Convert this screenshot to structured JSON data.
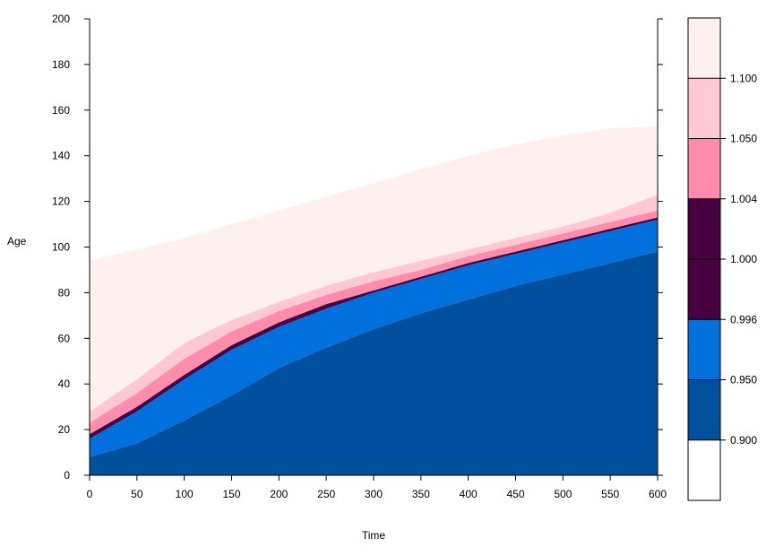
{
  "chart_data": {
    "type": "heatmap",
    "title": "",
    "xlabel": "Time",
    "ylabel": "Age",
    "xlim": [
      0,
      600
    ],
    "ylim": [
      0,
      200
    ],
    "xticks": [
      0,
      50,
      100,
      150,
      200,
      250,
      300,
      350,
      400,
      450,
      500,
      550,
      600
    ],
    "yticks": [
      0,
      20,
      40,
      60,
      80,
      100,
      120,
      140,
      160,
      180,
      200
    ],
    "grid": false,
    "legend_position": "right",
    "colorbar": {
      "tick_labels": [
        "0.900",
        "0.950",
        "0.996",
        "1.000",
        "1.004",
        "1.050",
        "1.100"
      ],
      "bins": [
        {
          "color": "#FFFFFF"
        },
        {
          "color": "#00509E"
        },
        {
          "color": "#0070DC"
        },
        {
          "color": "#480040"
        },
        {
          "color": "#480040"
        },
        {
          "color": "#FF8CAA"
        },
        {
          "color": "#FFC8D2"
        },
        {
          "color": "#FFF0F0"
        }
      ]
    },
    "x": [
      0,
      50,
      100,
      150,
      200,
      250,
      300,
      350,
      400,
      450,
      500,
      550,
      600
    ],
    "bands": [
      {
        "name": "0.900",
        "color": "#00509E",
        "upper_age": [
          8,
          14,
          24,
          35,
          47,
          56,
          64,
          71,
          77,
          83,
          88,
          93,
          98
        ]
      },
      {
        "name": "0.950",
        "color": "#0070DC",
        "upper_age": [
          16,
          28,
          42,
          55,
          65,
          73,
          80,
          86,
          92,
          97,
          102,
          107,
          112
        ]
      },
      {
        "name": "0.996-1.004",
        "color": "#480040",
        "upper_age": [
          18,
          30,
          44,
          57,
          67,
          75,
          81,
          87,
          93,
          98,
          103,
          108,
          113
        ]
      },
      {
        "name": "1.050",
        "color": "#FF8CAA",
        "upper_age": [
          23,
          36,
          51,
          63,
          72,
          79,
          85,
          90,
          96,
          101,
          106,
          111,
          116
        ]
      },
      {
        "name": "1.100",
        "color": "#FFC8D2",
        "upper_age": [
          28,
          42,
          58,
          68,
          76,
          83,
          89,
          94,
          99,
          104,
          109,
          115,
          123
        ]
      },
      {
        "name": ">1.100",
        "color": "#FFF0F0",
        "upper_age": [
          94,
          99,
          104,
          110,
          116,
          122,
          128,
          134,
          140,
          145,
          149,
          152,
          153
        ]
      }
    ]
  }
}
